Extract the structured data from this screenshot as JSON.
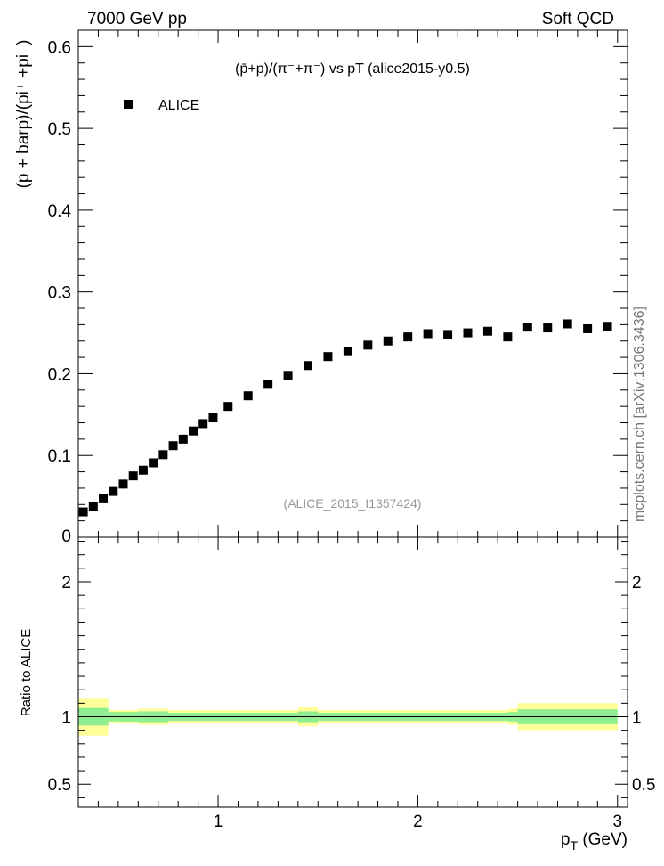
{
  "header": {
    "left": "7000 GeV pp",
    "right": "Soft QCD"
  },
  "side_label": "mcplots.cern.ch [arXiv:1306.3436]",
  "reference": "(ALICE_2015_I1357424)",
  "colors": {
    "marker": "#000000",
    "band_inner": "#90ee90",
    "band_outer": "#ffff99",
    "reference_text": "#999999",
    "side_text": "#777777"
  },
  "chart_data": [
    {
      "type": "scatter",
      "title": "(p̄+p)/(π⁻+π⁻) vs pT (alice2015-y0.5)",
      "ylabel": "(p + barp)/(pi⁺ +pi⁻)",
      "xlabel": "",
      "xlim": [
        0.3,
        3.05
      ],
      "ylim": [
        0,
        0.62
      ],
      "yticks": [
        0,
        0.1,
        0.2,
        0.3,
        0.4,
        0.5,
        0.6
      ],
      "ytick_labels": [
        "0",
        "0.1",
        "0.2",
        "0.3",
        "0.4",
        "0.5",
        "0.6"
      ],
      "legend": {
        "placement": "top-left",
        "entries": [
          "ALICE"
        ]
      },
      "series": [
        {
          "name": "ALICE",
          "marker": "square",
          "x": [
            0.325,
            0.375,
            0.425,
            0.475,
            0.525,
            0.575,
            0.625,
            0.675,
            0.725,
            0.775,
            0.825,
            0.875,
            0.925,
            0.975,
            1.05,
            1.15,
            1.25,
            1.35,
            1.45,
            1.55,
            1.65,
            1.75,
            1.85,
            1.95,
            2.05,
            2.15,
            2.25,
            2.35,
            2.45,
            2.55,
            2.65,
            2.75,
            2.85,
            2.95
          ],
          "y": [
            0.031,
            0.038,
            0.047,
            0.056,
            0.065,
            0.075,
            0.082,
            0.091,
            0.101,
            0.112,
            0.12,
            0.13,
            0.139,
            0.146,
            0.16,
            0.173,
            0.187,
            0.198,
            0.21,
            0.221,
            0.227,
            0.235,
            0.24,
            0.245,
            0.249,
            0.248,
            0.25,
            0.252,
            0.245,
            0.257,
            0.256,
            0.261,
            0.255,
            0.258
          ]
        }
      ]
    },
    {
      "type": "area",
      "ylabel": "Ratio to ALICE",
      "xlabel": "p_T (GeV)",
      "xlim": [
        0.3,
        3.05
      ],
      "ylim": [
        0.33,
        2.33
      ],
      "xticks": [
        1,
        2,
        3
      ],
      "xtick_labels": [
        "1",
        "2",
        "3"
      ],
      "yticks": [
        0.5,
        1,
        2
      ],
      "ytick_labels": [
        "0.5",
        "1",
        "2"
      ],
      "bands": {
        "edges": [
          0.3,
          0.45,
          0.5,
          0.6,
          0.75,
          1.0,
          1.4,
          1.5,
          2.45,
          2.5,
          3.0
        ],
        "inner_half_width": [
          0.065,
          0.035,
          0.035,
          0.04,
          0.03,
          0.03,
          0.04,
          0.03,
          0.035,
          0.055
        ],
        "outer_half_width": [
          0.14,
          0.05,
          0.05,
          0.06,
          0.05,
          0.05,
          0.07,
          0.05,
          0.06,
          0.1
        ]
      }
    }
  ]
}
